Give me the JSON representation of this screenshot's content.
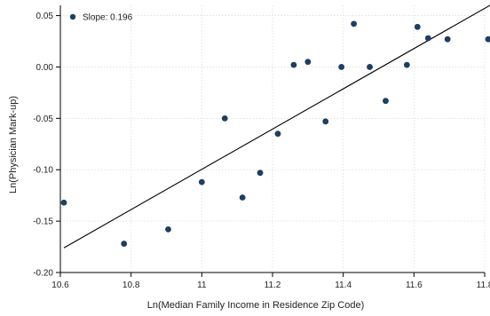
{
  "chart_data": {
    "type": "scatter",
    "title": "",
    "xlabel": "Ln(Median Family Income in Residence Zip Code)",
    "ylabel": "Ln(Physician Mark-up)",
    "xlim": [
      10.6,
      11.8
    ],
    "ylim": [
      -0.2,
      0.06
    ],
    "xticks": [
      10.6,
      10.8,
      11.0,
      11.2,
      11.4,
      11.6,
      11.8
    ],
    "xtick_labels": [
      "10.6",
      "10.8",
      "11",
      "11.2",
      "11.4",
      "11.6",
      "11.8"
    ],
    "yticks": [
      -0.2,
      -0.15,
      -0.1,
      -0.05,
      0.0,
      0.05
    ],
    "ytick_labels": [
      "-0.20",
      "-0.15",
      "-0.10",
      "-0.05",
      "0.00",
      "0.05"
    ],
    "grid": true,
    "legend": {
      "position": "top-left",
      "label": "Slope: 0.196"
    },
    "series": [
      {
        "name": "Slope: 0.196",
        "marker_color": "#1f3f5f",
        "points": [
          [
            10.61,
            -0.132
          ],
          [
            10.78,
            -0.172
          ],
          [
            10.905,
            -0.158
          ],
          [
            11.0,
            -0.112
          ],
          [
            11.065,
            -0.05
          ],
          [
            11.115,
            -0.127
          ],
          [
            11.165,
            -0.103
          ],
          [
            11.215,
            -0.065
          ],
          [
            11.26,
            0.002
          ],
          [
            11.3,
            0.005
          ],
          [
            11.35,
            -0.053
          ],
          [
            11.395,
            0.0
          ],
          [
            11.43,
            0.042
          ],
          [
            11.475,
            0.0
          ],
          [
            11.52,
            -0.033
          ],
          [
            11.58,
            0.002
          ],
          [
            11.61,
            0.039
          ],
          [
            11.64,
            0.028
          ],
          [
            11.695,
            0.027
          ],
          [
            11.81,
            0.027
          ]
        ]
      }
    ],
    "fit_line": {
      "slope": 0.196,
      "x": [
        10.61,
        11.82
      ],
      "y": [
        -0.176,
        0.061
      ],
      "color": "#000000"
    }
  }
}
